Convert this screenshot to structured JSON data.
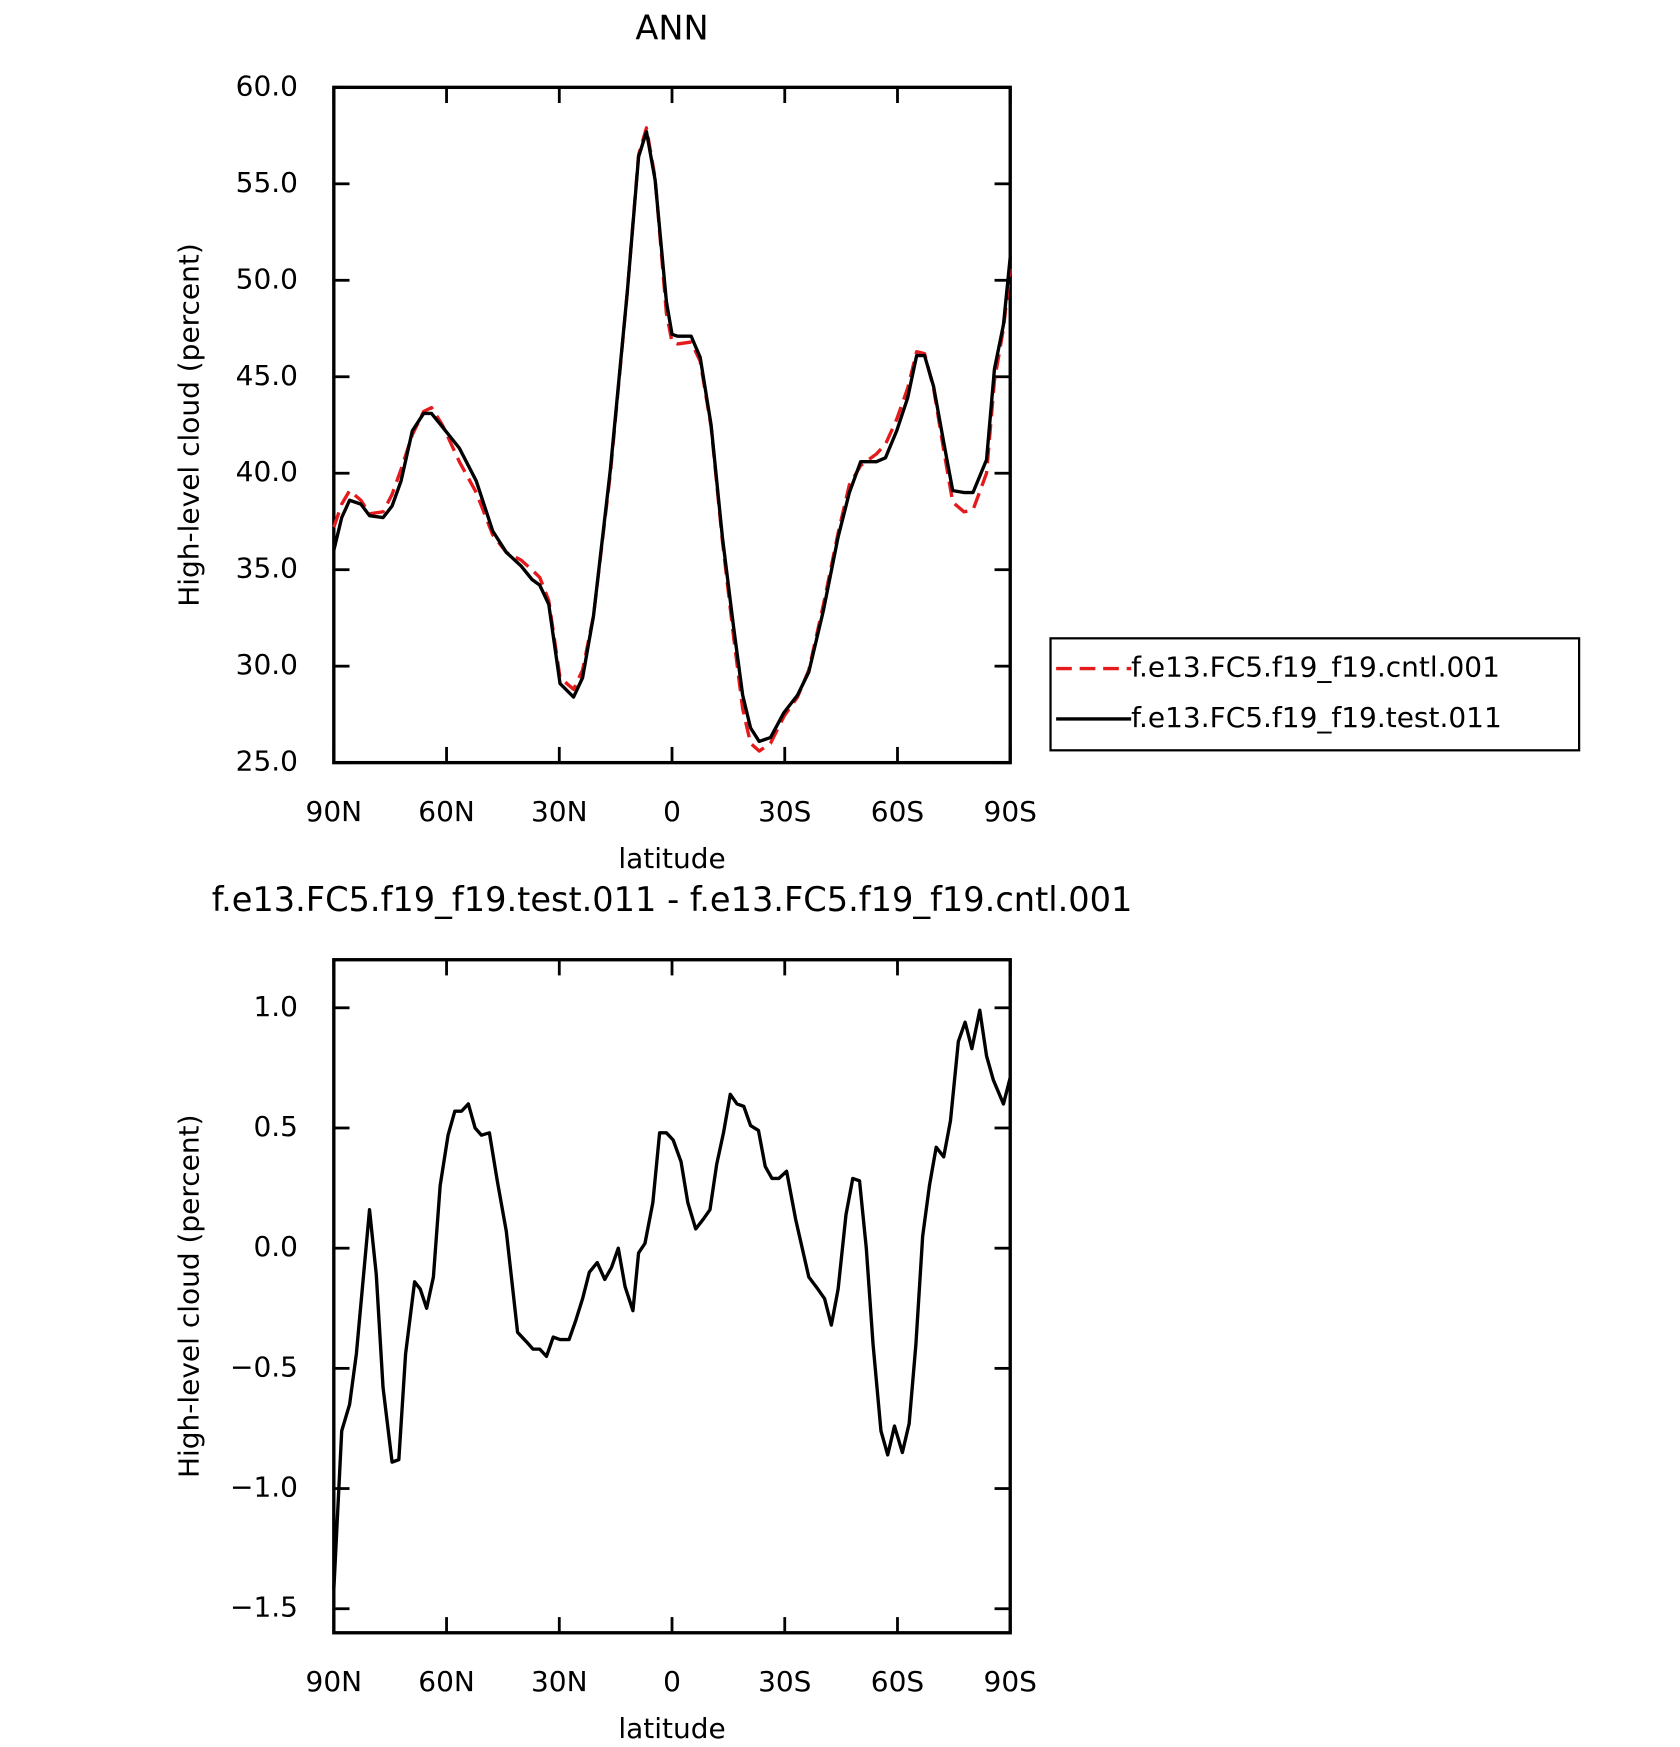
{
  "chart_data": [
    {
      "type": "line",
      "title": "ANN",
      "x_label": "latitude",
      "y_label": "High-level cloud (percent)",
      "x": [
        90,
        87.9,
        85.8,
        82.8,
        80.5,
        76.9,
        74.5,
        72.1,
        69.1,
        66.1,
        64.0,
        61.1,
        56.6,
        52.1,
        47.7,
        44.1,
        40.2,
        37.3,
        35.2,
        32.8,
        29.8,
        26.2,
        23.8,
        20.9,
        16.4,
        11.9,
        8.9,
        6.8,
        4.5,
        1.5,
        0,
        -1.5,
        -5.1,
        -7.5,
        -10.4,
        -13.4,
        -16.4,
        -18.8,
        -20.9,
        -23.2,
        -26.2,
        -29.8,
        -33.4,
        -36.4,
        -40.3,
        -44.2,
        -47.2,
        -50.2,
        -54.4,
        -56.8,
        -59.8,
        -62.7,
        -65.1,
        -67.2,
        -69.6,
        -72.3,
        -74.7,
        -77.7,
        -80.1,
        -83.7,
        -85.8,
        -88.2,
        -90
      ],
      "series": [
        {
          "name": "f.e13.FC5.f19_f19.cntl.001",
          "color": "#e41a1c",
          "dash": "dashed",
          "values": [
            37.2,
            38.4,
            39.1,
            38.6,
            37.9,
            38.0,
            38.9,
            40.2,
            42.0,
            43.2,
            43.4,
            42.5,
            40.6,
            39.0,
            36.8,
            35.9,
            35.5,
            35.0,
            34.6,
            33.4,
            29.4,
            28.8,
            29.8,
            32.6,
            40.0,
            49.4,
            56.5,
            57.9,
            55.3,
            48.3,
            46.8,
            46.7,
            46.8,
            45.8,
            42.4,
            36.5,
            31.5,
            27.8,
            26.0,
            25.6,
            26.0,
            27.4,
            28.4,
            29.8,
            33.2,
            36.9,
            39.4,
            40.4,
            41.0,
            41.5,
            42.8,
            44.4,
            46.3,
            46.2,
            44.4,
            41.2,
            38.5,
            38.0,
            38.1,
            40.0,
            44.8,
            47.5,
            50.6
          ]
        },
        {
          "name": "f.e13.FC5.f19_f19.test.011",
          "color": "#000000",
          "dash": "solid",
          "values": [
            36.0,
            37.7,
            38.6,
            38.4,
            37.8,
            37.7,
            38.3,
            39.6,
            42.2,
            43.1,
            43.1,
            42.4,
            41.3,
            39.6,
            37.0,
            35.9,
            35.2,
            34.5,
            34.2,
            33.2,
            29.1,
            28.4,
            29.4,
            32.6,
            40.2,
            49.4,
            56.4,
            57.7,
            55.2,
            48.9,
            47.2,
            47.1,
            47.1,
            46.0,
            42.5,
            36.7,
            32.0,
            28.5,
            26.8,
            26.1,
            26.3,
            27.6,
            28.5,
            29.7,
            32.9,
            36.7,
            39.0,
            40.6,
            40.6,
            40.8,
            42.2,
            43.9,
            46.1,
            46.1,
            44.5,
            41.6,
            39.1,
            39.0,
            39.0,
            40.7,
            45.4,
            47.7,
            51.2
          ]
        }
      ],
      "xlim": [
        90,
        -90
      ],
      "xticks": [
        {
          "value": 90,
          "label": "90N"
        },
        {
          "value": 60,
          "label": "60N"
        },
        {
          "value": 30,
          "label": "30N"
        },
        0,
        {
          "value": -30,
          "label": "30S"
        },
        {
          "value": -60,
          "label": "60S"
        },
        {
          "value": -90,
          "label": "90S"
        }
      ],
      "ylim": [
        25,
        60
      ],
      "yticks": [
        {
          "value": 25,
          "label": "25.0"
        },
        {
          "value": 30,
          "label": "30.0"
        },
        {
          "value": 35,
          "label": "35.0"
        },
        {
          "value": 40,
          "label": "40.0"
        },
        {
          "value": 45,
          "label": "45.0"
        },
        {
          "value": 50,
          "label": "50.0"
        },
        {
          "value": 55,
          "label": "55.0"
        },
        {
          "value": 60,
          "label": "60.0"
        }
      ],
      "legend": "right"
    },
    {
      "type": "line",
      "title": "f.e13.FC5.f19_f19.test.011 - f.e13.FC5.f19_f19.cntl.001",
      "x_label": "latitude",
      "y_label": "High-level cloud (percent)",
      "x": [
        90,
        87.9,
        85.8,
        84.0,
        80.5,
        78.7,
        76.9,
        74.5,
        72.7,
        70.9,
        68.5,
        67.0,
        65.3,
        63.5,
        61.7,
        59.6,
        57.8,
        56.0,
        54.2,
        52.4,
        50.7,
        48.6,
        46.5,
        44.1,
        41.1,
        38.7,
        37.0,
        35.2,
        33.4,
        31.6,
        29.8,
        27.4,
        25.6,
        23.8,
        22.0,
        19.9,
        17.9,
        16.1,
        14.3,
        12.5,
        10.4,
        8.9,
        7.2,
        5.1,
        3.3,
        1.5,
        -0.3,
        -2.4,
        -4.2,
        -6.3,
        -8.3,
        -10.1,
        -11.9,
        -13.7,
        -15.5,
        -17.3,
        -19.1,
        -20.9,
        -23.0,
        -24.8,
        -26.6,
        -28.4,
        -30.5,
        -32.9,
        -36.4,
        -38.8,
        -40.6,
        -42.4,
        -44.2,
        -46.3,
        -48.1,
        -49.9,
        -51.7,
        -53.5,
        -55.6,
        -57.4,
        -59.2,
        -61.3,
        -63.1,
        -64.9,
        -66.7,
        -68.5,
        -70.3,
        -72.3,
        -74.1,
        -76.2,
        -78.0,
        -79.8,
        -81.9,
        -83.7,
        -85.5,
        -88.2,
        -90
      ],
      "series": [
        {
          "color": "#000000",
          "dash": "solid",
          "values": [
            -1.42,
            -0.76,
            -0.65,
            -0.44,
            0.16,
            -0.11,
            -0.58,
            -0.89,
            -0.88,
            -0.44,
            -0.14,
            -0.17,
            -0.25,
            -0.12,
            0.26,
            0.47,
            0.57,
            0.57,
            0.6,
            0.5,
            0.47,
            0.48,
            0.28,
            0.07,
            -0.35,
            -0.39,
            -0.42,
            -0.42,
            -0.45,
            -0.37,
            -0.38,
            -0.38,
            -0.3,
            -0.21,
            -0.1,
            -0.06,
            -0.13,
            -0.08,
            0.0,
            -0.16,
            -0.26,
            -0.02,
            0.02,
            0.19,
            0.48,
            0.48,
            0.45,
            0.36,
            0.19,
            0.08,
            0.12,
            0.16,
            0.35,
            0.48,
            0.64,
            0.6,
            0.59,
            0.51,
            0.49,
            0.34,
            0.29,
            0.29,
            0.32,
            0.12,
            -0.12,
            -0.17,
            -0.21,
            -0.32,
            -0.17,
            0.14,
            0.29,
            0.28,
            0.0,
            -0.4,
            -0.76,
            -0.86,
            -0.74,
            -0.85,
            -0.73,
            -0.4,
            0.05,
            0.26,
            0.42,
            0.38,
            0.53,
            0.86,
            0.94,
            0.83,
            0.99,
            0.8,
            0.7,
            0.6,
            0.71
          ]
        }
      ],
      "xlim": [
        90,
        -90
      ],
      "xticks": [
        {
          "value": 90,
          "label": "90N"
        },
        {
          "value": 60,
          "label": "60N"
        },
        {
          "value": 30,
          "label": "30N"
        },
        0,
        {
          "value": -30,
          "label": "30S"
        },
        {
          "value": -60,
          "label": "60S"
        },
        {
          "value": -90,
          "label": "90S"
        }
      ],
      "ylim": [
        -1.6,
        1.2
      ],
      "yticks": [
        {
          "value": -1.5,
          "label": "−1.5"
        },
        {
          "value": -1.0,
          "label": "−1.0"
        },
        {
          "value": -0.5,
          "label": "−0.5"
        },
        {
          "value": 0,
          "label": "0.0"
        },
        {
          "value": 0.5,
          "label": "0.5"
        },
        {
          "value": 1.0,
          "label": "1.0"
        }
      ]
    }
  ]
}
